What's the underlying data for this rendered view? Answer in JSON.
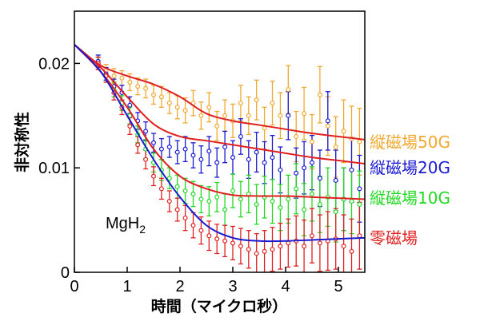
{
  "chart_data": {
    "type": "scatter",
    "title": "",
    "xlabel": "時間（マイクロ秒）",
    "ylabel": "非対称性",
    "xlim": [
      0,
      5.5
    ],
    "ylim": [
      0,
      0.025
    ],
    "x_ticks": [
      0,
      1,
      2,
      3,
      4,
      5
    ],
    "x_tick_labels": [
      "0",
      "1",
      "2",
      "3",
      "4",
      "5"
    ],
    "y_ticks": [
      0,
      0.01,
      0.02
    ],
    "y_tick_labels": [
      "0",
      "0.01",
      "0.02"
    ],
    "grid": false,
    "legend_position": "right",
    "annotation": {
      "main": "MgH",
      "sub": "2"
    },
    "series": [
      {
        "name": "縦磁場50G",
        "color": "#f0a830",
        "x": [
          0.45,
          0.6,
          0.75,
          0.9,
          1.05,
          1.2,
          1.35,
          1.5,
          1.65,
          1.8,
          1.95,
          2.1,
          2.25,
          2.4,
          2.55,
          2.7,
          2.85,
          3.0,
          3.15,
          3.3,
          3.45,
          3.6,
          3.75,
          3.9,
          4.05,
          4.2,
          4.35,
          4.5,
          4.65,
          4.8,
          4.95,
          5.1,
          5.25,
          5.4
        ],
        "y": [
          0.02,
          0.0193,
          0.0188,
          0.0186,
          0.0182,
          0.0178,
          0.0176,
          0.017,
          0.0168,
          0.0162,
          0.0158,
          0.0155,
          0.0162,
          0.015,
          0.0158,
          0.014,
          0.015,
          0.0145,
          0.0162,
          0.015,
          0.0165,
          0.0138,
          0.0162,
          0.015,
          0.0175,
          0.013,
          0.0152,
          0.0125,
          0.017,
          0.014,
          0.012,
          0.0135,
          0.0128,
          0.0125
        ],
        "err": [
          0.0006,
          0.0006,
          0.0007,
          0.0007,
          0.0008,
          0.0008,
          0.0009,
          0.0009,
          0.001,
          0.001,
          0.0011,
          0.0012,
          0.0012,
          0.0013,
          0.0014,
          0.0014,
          0.0015,
          0.0016,
          0.0017,
          0.0018,
          0.0019,
          0.002,
          0.0021,
          0.0022,
          0.0023,
          0.0024,
          0.0025,
          0.0026,
          0.0027,
          0.0028,
          0.0029,
          0.003,
          0.0031,
          0.0032
        ],
        "fit_x": [
          0,
          0.5,
          1.0,
          1.5,
          2.0,
          2.5,
          3.0,
          3.5,
          4.0,
          4.5,
          5.0,
          5.5
        ],
        "fit_y": [
          0.0218,
          0.0198,
          0.0188,
          0.018,
          0.0168,
          0.0152,
          0.0145,
          0.0141,
          0.0137,
          0.0133,
          0.013,
          0.0127
        ]
      },
      {
        "name": "縦磁場20G",
        "color": "#1a1ad0",
        "x": [
          0.45,
          0.6,
          0.75,
          0.9,
          1.05,
          1.2,
          1.35,
          1.5,
          1.65,
          1.8,
          1.95,
          2.1,
          2.25,
          2.4,
          2.55,
          2.7,
          2.85,
          3.0,
          3.15,
          3.3,
          3.45,
          3.6,
          3.75,
          3.9,
          4.05,
          4.2,
          4.35,
          4.5,
          4.65,
          4.8,
          4.95,
          5.1,
          5.25,
          5.4
        ],
        "y": [
          0.0202,
          0.019,
          0.0178,
          0.0172,
          0.016,
          0.0145,
          0.0135,
          0.0124,
          0.0118,
          0.012,
          0.0115,
          0.0118,
          0.0112,
          0.0108,
          0.0116,
          0.0105,
          0.012,
          0.011,
          0.013,
          0.0108,
          0.0115,
          0.0105,
          0.011,
          0.0098,
          0.015,
          0.0095,
          0.01,
          0.0105,
          0.009,
          0.0145,
          0.0088,
          0.007,
          0.0098,
          0.008
        ],
        "err": [
          0.0006,
          0.0006,
          0.0007,
          0.0007,
          0.0008,
          0.0008,
          0.0009,
          0.0009,
          0.001,
          0.001,
          0.0011,
          0.0012,
          0.0012,
          0.0013,
          0.0014,
          0.0014,
          0.0015,
          0.0016,
          0.0017,
          0.0018,
          0.0019,
          0.002,
          0.0021,
          0.0022,
          0.0023,
          0.0024,
          0.0025,
          0.0026,
          0.0027,
          0.0028,
          0.0029,
          0.003,
          0.0031,
          0.0032
        ],
        "fit_x": [
          0,
          0.5,
          1.0,
          1.5,
          2.0,
          2.5,
          3.0,
          3.5,
          4.0,
          4.5,
          5.0,
          5.5
        ],
        "fit_y": [
          0.0218,
          0.0196,
          0.0168,
          0.0142,
          0.013,
          0.0126,
          0.0122,
          0.0118,
          0.0114,
          0.011,
          0.0107,
          0.0104
        ]
      },
      {
        "name": "縦磁場10G",
        "color": "#22d822",
        "x": [
          0.45,
          0.6,
          0.75,
          0.9,
          1.05,
          1.2,
          1.35,
          1.5,
          1.65,
          1.8,
          1.95,
          2.1,
          2.25,
          2.4,
          2.55,
          2.7,
          2.85,
          3.0,
          3.15,
          3.3,
          3.45,
          3.6,
          3.75,
          3.9,
          4.05,
          4.2,
          4.35,
          4.5,
          4.65,
          4.8,
          4.95,
          5.1,
          5.25,
          5.4
        ],
        "y": [
          0.02,
          0.0188,
          0.0175,
          0.0162,
          0.015,
          0.0132,
          0.0118,
          0.0105,
          0.0098,
          0.009,
          0.0082,
          0.0078,
          0.0075,
          0.007,
          0.0068,
          0.0072,
          0.006,
          0.0078,
          0.007,
          0.0075,
          0.0065,
          0.0072,
          0.0068,
          0.0062,
          0.007,
          0.008,
          0.006,
          0.0075,
          0.0065,
          0.0072,
          0.0058,
          0.007,
          0.0068,
          0.0065
        ],
        "err": [
          0.0006,
          0.0006,
          0.0007,
          0.0007,
          0.0008,
          0.0008,
          0.0009,
          0.0009,
          0.001,
          0.001,
          0.0011,
          0.0012,
          0.0012,
          0.0013,
          0.0014,
          0.0014,
          0.0015,
          0.0016,
          0.0017,
          0.0018,
          0.0019,
          0.002,
          0.0021,
          0.0022,
          0.0023,
          0.0024,
          0.0025,
          0.0026,
          0.0027,
          0.0028,
          0.0029,
          0.003,
          0.0031,
          0.0032
        ],
        "fit_x": [
          0,
          0.5,
          1.0,
          1.5,
          2.0,
          2.5,
          3.0,
          3.5,
          4.0,
          4.5,
          5.0,
          5.5
        ],
        "fit_y": [
          0.0218,
          0.0192,
          0.0158,
          0.0118,
          0.0092,
          0.008,
          0.0074,
          0.0073,
          0.0073,
          0.0072,
          0.0071,
          0.007
        ]
      },
      {
        "name": "零磁場",
        "color": "#e02020",
        "x": [
          0.45,
          0.6,
          0.75,
          0.9,
          1.05,
          1.2,
          1.35,
          1.5,
          1.65,
          1.8,
          1.95,
          2.1,
          2.25,
          2.4,
          2.55,
          2.7,
          2.85,
          3.0,
          3.15,
          3.3,
          3.45,
          3.6,
          3.75,
          3.9,
          4.05,
          4.2,
          4.35,
          4.5,
          4.65,
          4.8,
          4.95,
          5.1,
          5.25,
          5.4
        ],
        "y": [
          0.02,
          0.0188,
          0.0172,
          0.0158,
          0.014,
          0.0122,
          0.0108,
          0.0092,
          0.008,
          0.0068,
          0.006,
          0.0052,
          0.0045,
          0.004,
          0.0035,
          0.0032,
          0.003,
          0.0028,
          0.0025,
          0.0022,
          0.0018,
          0.002,
          0.0022,
          0.0025,
          0.0028,
          0.003,
          0.0025,
          0.0035,
          0.0028,
          0.003,
          0.0032,
          0.0025,
          0.002,
          0.0035
        ],
        "err": [
          0.0006,
          0.0006,
          0.0007,
          0.0007,
          0.0008,
          0.0008,
          0.0009,
          0.0009,
          0.001,
          0.001,
          0.0011,
          0.0012,
          0.0012,
          0.0013,
          0.0014,
          0.0014,
          0.0015,
          0.0016,
          0.0017,
          0.0018,
          0.0019,
          0.002,
          0.0021,
          0.0022,
          0.0023,
          0.0024,
          0.0025,
          0.0026,
          0.0027,
          0.0028,
          0.0029,
          0.003,
          0.0031,
          0.0032
        ],
        "fit_color": "#1a1ad0",
        "fit_x": [
          0,
          0.5,
          1.0,
          1.5,
          2.0,
          2.5,
          3.0,
          3.5,
          4.0,
          4.5,
          5.0,
          5.5
        ],
        "fit_y": [
          0.0218,
          0.0192,
          0.015,
          0.0108,
          0.0072,
          0.0045,
          0.0033,
          0.003,
          0.003,
          0.0031,
          0.0032,
          0.0033
        ]
      }
    ]
  }
}
